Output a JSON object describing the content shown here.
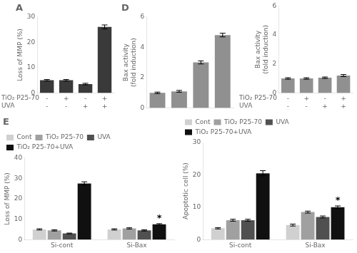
{
  "chart_data": [
    {
      "type": "bar",
      "title": "A",
      "ylabel": "Loss of MMP (%)",
      "categories": [
        [
          "-",
          "-"
        ],
        [
          "+",
          "-"
        ],
        [
          "-",
          "+"
        ],
        [
          "+",
          "+"
        ]
      ],
      "values": [
        5.0,
        5.0,
        3.5,
        26.0
      ],
      "errors": [
        0.3,
        0.3,
        0.3,
        0.8
      ],
      "color": "#3a3a3a",
      "ylim": [
        0,
        30
      ],
      "yticks": [
        0,
        10,
        20,
        30
      ],
      "grid": false,
      "annotations": [
        "TiO₂ P25-70",
        "UVA"
      ]
    },
    {
      "type": "bar",
      "title": "D",
      "ylabel": "Bax activity\n(fold induction)",
      "categories": [
        null,
        null,
        null,
        null
      ],
      "values": [
        1.0,
        1.1,
        3.0,
        4.8
      ],
      "errors": [
        0.05,
        0.06,
        0.1,
        0.12
      ],
      "color": "#909090",
      "ylim": [
        0,
        6
      ],
      "yticks": [
        0,
        2,
        4,
        6
      ],
      "grid": false,
      "tick_labels": "y"
    },
    {
      "type": "bar",
      "ylabel": "Bax activity\n(fold induction)",
      "categories": [
        [
          "-",
          "-"
        ],
        [
          "+",
          "-"
        ],
        [
          "-",
          "+"
        ],
        [
          "+",
          "+"
        ]
      ],
      "values": [
        1.0,
        1.0,
        1.05,
        1.2
      ],
      "errors": [
        0.05,
        0.05,
        0.05,
        0.07
      ],
      "color": "#909090",
      "ylim": [
        0,
        6
      ],
      "yticks": [
        0,
        2,
        4,
        6
      ],
      "grid": false,
      "annotations": [
        "TiO₂ P25-70",
        "UVA"
      ]
    },
    {
      "type": "bar",
      "title": "E",
      "ylabel": "Loss of MMP (%)",
      "categories": [
        "Si-cont",
        "Si-Bax"
      ],
      "series": [
        {
          "name": "Cont",
          "color": "#d0d0d0",
          "values": [
            5.0,
            5.0
          ],
          "errors": [
            0.3,
            0.3
          ]
        },
        {
          "name": "TiO₂ P25-70",
          "color": "#a0a0a0",
          "values": [
            4.5,
            5.5
          ],
          "errors": [
            0.3,
            0.3
          ]
        },
        {
          "name": "UVA",
          "color": "#505050",
          "values": [
            3.0,
            4.5
          ],
          "errors": [
            0.2,
            0.3
          ]
        },
        {
          "name": "TiO₂ P25-70+UVA",
          "color": "#101010",
          "values": [
            27.5,
            7.5
          ],
          "errors": [
            0.8,
            0.3
          ]
        }
      ],
      "ylim": [
        0,
        40
      ],
      "yticks": [
        0,
        10,
        20,
        30,
        40
      ],
      "grid": false,
      "legend": "upper left",
      "annotations": [
        {
          "text": "*",
          "category": "Si-Bax",
          "series": "TiO₂ P25-70+UVA"
        }
      ]
    },
    {
      "type": "bar",
      "ylabel": "Apoptotic cell (%)",
      "categories": [
        "Si-cont",
        "Si-Bax"
      ],
      "series": [
        {
          "name": "Cont",
          "color": "#d0d0d0",
          "values": [
            3.5,
            4.5
          ],
          "errors": [
            0.2,
            0.3
          ]
        },
        {
          "name": "TiO₂ P25-70",
          "color": "#a0a0a0",
          "values": [
            6.0,
            8.5
          ],
          "errors": [
            0.3,
            0.3
          ]
        },
        {
          "name": "UVA",
          "color": "#505050",
          "values": [
            6.0,
            7.0
          ],
          "errors": [
            0.3,
            0.3
          ]
        },
        {
          "name": "TiO₂ P25-70+UVA",
          "color": "#101010",
          "values": [
            20.5,
            10.0
          ],
          "errors": [
            0.8,
            0.4
          ]
        }
      ],
      "ylim": [
        0,
        30
      ],
      "yticks": [
        0,
        10,
        20,
        30
      ],
      "grid": false,
      "legend": "upper left",
      "annotations": [
        {
          "text": "*",
          "category": "Si-Bax",
          "series": "TiO₂ P25-70+UVA"
        }
      ]
    }
  ]
}
